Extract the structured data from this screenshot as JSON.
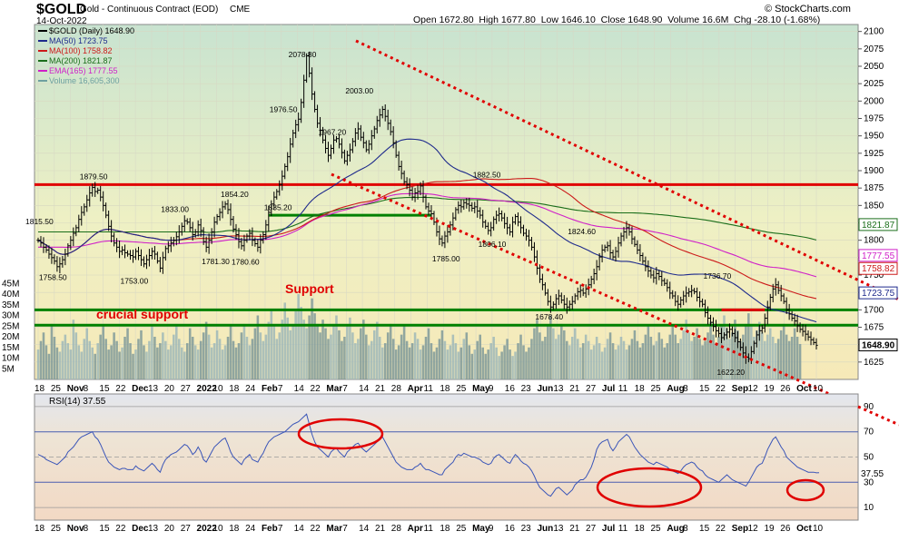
{
  "header": {
    "symbol": "$GOLD",
    "name": "Gold - Continuous Contract (EOD)",
    "exchange": "CME",
    "date": "14-Oct-2022",
    "credit": "© StockCharts.com",
    "ohlc": "Open 1672.80  High 1677.80  Low 1646.10  Close 1648.90  Volume 16.6M  Chg -28.10 (-1.68%)"
  },
  "legend": [
    {
      "label": "$GOLD (Daily) 1648.90",
      "color": "#000000"
    },
    {
      "label": "MA(50) 1723.75",
      "color": "#1e2a8c"
    },
    {
      "label": "MA(100) 1758.82",
      "color": "#cc1a1a"
    },
    {
      "label": "MA(200) 1821.87",
      "color": "#1a6e1a"
    },
    {
      "label": "EMA(165) 1777.55",
      "color": "#d020c8"
    },
    {
      "label": "Volume 16,605,300",
      "color": "#6ea0a0"
    }
  ],
  "rsi_label": "RSI(14) 37.55",
  "annotations": {
    "support": "Support",
    "crucial_support": "crucial support"
  },
  "colors": {
    "price_bg": "#f3eec2",
    "price_bg_top": "#cfe5cf",
    "rsi_bg": "#f0e2cc",
    "red_line": "#e00000",
    "green_line": "#008000",
    "trend": "#e00000",
    "volume": "#8fa8a8"
  },
  "chart_data": {
    "type": "line",
    "price_axis": {
      "ticks": [
        1625,
        1650,
        1675,
        1700,
        1725,
        1750,
        1775,
        1800,
        1825,
        1850,
        1875,
        1900,
        1925,
        1950,
        1975,
        2000,
        2025,
        2050,
        2075,
        2100
      ]
    },
    "volume_axis": {
      "ticks": [
        "5M",
        "10M",
        "15M",
        "20M",
        "25M",
        "30M",
        "35M",
        "40M",
        "45M"
      ]
    },
    "rsi_axis": {
      "ticks": [
        10,
        30,
        50,
        70,
        90
      ],
      "ylim": [
        0,
        100
      ]
    },
    "x_tick_labels": [
      "18",
      "25",
      "Nov",
      "8",
      "15",
      "22",
      "Dec",
      "13",
      "20",
      "27",
      "2022",
      "10",
      "18",
      "24",
      "Feb",
      "7",
      "14",
      "22",
      "Mar",
      "7",
      "14",
      "21",
      "28",
      "Apr",
      "11",
      "18",
      "25",
      "May",
      "9",
      "16",
      "23",
      "Jun",
      "13",
      "21",
      "27",
      "Jul",
      "11",
      "18",
      "25",
      "Aug",
      "8",
      "15",
      "22",
      "Sep",
      "12",
      "19",
      "26",
      "Oct",
      "10"
    ],
    "price_labels": [
      {
        "text": "1815.50",
        "value": 1815.5
      },
      {
        "text": "1758.50",
        "value": 1758.5
      },
      {
        "text": "1879.50",
        "value": 1879.5
      },
      {
        "text": "1753.00",
        "value": 1753
      },
      {
        "text": "1833.00",
        "value": 1833
      },
      {
        "text": "1781.30",
        "value": 1781.3
      },
      {
        "text": "1854.20",
        "value": 1854.2
      },
      {
        "text": "1780.60",
        "value": 1780.6
      },
      {
        "text": "1976.50",
        "value": 1976.5
      },
      {
        "text": "2078.80",
        "value": 2078.8
      },
      {
        "text": "1835.20",
        "value": 1835.2
      },
      {
        "text": "1967.20",
        "value": 1967.2
      },
      {
        "text": "2003.00",
        "value": 2003
      },
      {
        "text": "1785.00",
        "value": 1785
      },
      {
        "text": "1882.50",
        "value": 1882.5
      },
      {
        "text": "1806.10",
        "value": 1806.1
      },
      {
        "text": "1678.40",
        "value": 1678.4
      },
      {
        "text": "1824.60",
        "value": 1824.6
      },
      {
        "text": "1736.70",
        "value": 1736.7
      },
      {
        "text": "1622.20",
        "value": 1622.2
      }
    ],
    "right_value_labels": [
      {
        "text": "1821.87",
        "value": 1821.87,
        "color": "#1a6e1a"
      },
      {
        "text": "1777.55",
        "value": 1777.55,
        "color": "#d020c8"
      },
      {
        "text": "1758.82",
        "value": 1758.82,
        "color": "#cc1a1a"
      },
      {
        "text": "1723.75",
        "value": 1723.75,
        "color": "#1e2a8c"
      },
      {
        "text": "1648.90",
        "value": 1648.9,
        "color": "#000000"
      }
    ],
    "rsi_value_label": "37.55",
    "horizontal_levels": [
      {
        "value": 1880,
        "color": "red"
      },
      {
        "value": 1836,
        "color": "green",
        "from_index": 85,
        "to_index": 145
      },
      {
        "value": 1700,
        "color": "green"
      },
      {
        "value": 1678,
        "color": "green"
      },
      {
        "value": 1700,
        "color": "red",
        "from_index": 252,
        "to_index": 268
      }
    ],
    "price_close": [
      1800,
      1796,
      1790,
      1786,
      1780,
      1775,
      1770,
      1762,
      1766,
      1772,
      1780,
      1792,
      1800,
      1810,
      1818,
      1830,
      1840,
      1848,
      1858,
      1868,
      1876,
      1870,
      1872,
      1862,
      1850,
      1836,
      1820,
      1806,
      1796,
      1790,
      1784,
      1786,
      1782,
      1780,
      1778,
      1776,
      1784,
      1778,
      1772,
      1766,
      1772,
      1778,
      1784,
      1780,
      1770,
      1760,
      1775,
      1788,
      1792,
      1796,
      1800,
      1805,
      1812,
      1820,
      1828,
      1826,
      1818,
      1808,
      1812,
      1822,
      1814,
      1798,
      1790,
      1800,
      1812,
      1826,
      1834,
      1840,
      1848,
      1852,
      1844,
      1830,
      1816,
      1808,
      1798,
      1792,
      1800,
      1806,
      1810,
      1800,
      1795,
      1790,
      1800,
      1808,
      1822,
      1840,
      1852,
      1862,
      1870,
      1880,
      1892,
      1906,
      1920,
      1938,
      1954,
      1966,
      1974,
      1998,
      2030,
      2065,
      2040,
      2010,
      1988,
      1968,
      1958,
      1944,
      1932,
      1922,
      1932,
      1944,
      1946,
      1938,
      1926,
      1914,
      1922,
      1930,
      1942,
      1954,
      1960,
      1948,
      1940,
      1930,
      1938,
      1950,
      1960,
      1972,
      1980,
      1988,
      1978,
      1968,
      1956,
      1940,
      1922,
      1906,
      1896,
      1884,
      1880,
      1872,
      1862,
      1868,
      1870,
      1878,
      1862,
      1848,
      1842,
      1838,
      1826,
      1812,
      1802,
      1796,
      1806,
      1812,
      1822,
      1832,
      1844,
      1850,
      1848,
      1854,
      1852,
      1850,
      1846,
      1848,
      1842,
      1836,
      1826,
      1820,
      1814,
      1818,
      1830,
      1836,
      1838,
      1832,
      1824,
      1818,
      1812,
      1826,
      1834,
      1826,
      1818,
      1810,
      1806,
      1800,
      1790,
      1776,
      1760,
      1744,
      1736,
      1724,
      1712,
      1704,
      1708,
      1716,
      1720,
      1714,
      1708,
      1704,
      1708,
      1712,
      1720,
      1726,
      1728,
      1724,
      1730,
      1736,
      1744,
      1752,
      1762,
      1776,
      1786,
      1790,
      1792,
      1782,
      1776,
      1784,
      1796,
      1806,
      1812,
      1818,
      1812,
      1802,
      1794,
      1786,
      1778,
      1770,
      1762,
      1756,
      1750,
      1746,
      1752,
      1748,
      1742,
      1738,
      1732,
      1724,
      1720,
      1712,
      1708,
      1714,
      1720,
      1724,
      1726,
      1728,
      1726,
      1718,
      1712,
      1708,
      1696,
      1688,
      1682,
      1676,
      1670,
      1666,
      1660,
      1664,
      1668,
      1672,
      1666,
      1660,
      1654,
      1646,
      1638,
      1632,
      1630,
      1640,
      1652,
      1664,
      1670,
      1674,
      1688,
      1704,
      1718,
      1730,
      1736,
      1728,
      1720,
      1712,
      1700,
      1694,
      1688,
      1684,
      1677,
      1672,
      1669,
      1665,
      1661,
      1657,
      1653,
      1649
    ],
    "rsi": [
      52,
      51,
      50,
      48,
      47,
      46,
      45,
      44,
      46,
      48,
      50,
      54,
      56,
      58,
      61,
      64,
      66,
      67,
      68,
      69,
      70,
      66,
      64,
      60,
      55,
      50,
      46,
      44,
      42,
      41,
      40,
      41,
      41,
      40,
      40,
      40,
      43,
      41,
      40,
      39,
      41,
      43,
      45,
      43,
      40,
      38,
      44,
      48,
      50,
      52,
      53,
      54,
      56,
      58,
      60,
      59,
      56,
      52,
      54,
      58,
      54,
      48,
      46,
      50,
      54,
      58,
      60,
      62,
      64,
      65,
      60,
      54,
      50,
      48,
      46,
      44,
      48,
      50,
      52,
      48,
      47,
      46,
      50,
      53,
      58,
      62,
      64,
      66,
      67,
      68,
      69,
      70,
      72,
      74,
      76,
      77,
      78,
      80,
      82,
      84,
      76,
      68,
      62,
      58,
      56,
      54,
      52,
      50,
      54,
      56,
      57,
      54,
      52,
      50,
      54,
      56,
      58,
      60,
      61,
      58,
      56,
      54,
      56,
      58,
      60,
      62,
      64,
      66,
      62,
      58,
      54,
      50,
      46,
      44,
      42,
      41,
      40,
      40,
      40,
      42,
      43,
      45,
      42,
      40,
      40,
      39,
      38,
      37,
      36,
      36,
      40,
      42,
      44,
      46,
      50,
      52,
      51,
      53,
      52,
      51,
      50,
      50,
      49,
      48,
      46,
      45,
      44,
      45,
      49,
      51,
      52,
      50,
      48,
      46,
      45,
      49,
      52,
      50,
      47,
      45,
      44,
      42,
      39,
      35,
      30,
      26,
      24,
      22,
      20,
      19,
      22,
      25,
      26,
      24,
      22,
      20,
      22,
      24,
      28,
      30,
      32,
      32,
      34,
      38,
      42,
      48,
      56,
      60,
      62,
      63,
      64,
      58,
      55,
      58,
      62,
      64,
      66,
      68,
      66,
      62,
      58,
      55,
      52,
      50,
      48,
      46,
      45,
      44,
      46,
      45,
      44,
      43,
      42,
      40,
      39,
      38,
      37,
      39,
      42,
      44,
      45,
      46,
      45,
      42,
      40,
      39,
      36,
      34,
      33,
      32,
      31,
      30,
      32,
      34,
      36,
      34,
      32,
      31,
      30,
      29,
      28,
      27,
      30,
      34,
      38,
      42,
      44,
      45,
      50,
      56,
      60,
      64,
      66,
      62,
      58,
      55,
      50,
      48,
      46,
      44,
      42,
      41,
      40,
      39,
      38,
      38,
      38,
      37.5,
      37.55
    ],
    "volume_m": [
      14,
      18,
      22,
      16,
      12,
      26,
      20,
      15,
      13,
      18,
      21,
      17,
      14,
      28,
      22,
      16,
      13,
      19,
      24,
      18,
      15,
      12,
      17,
      21,
      25,
      19,
      14,
      16,
      22,
      18,
      13,
      15,
      20,
      24,
      17,
      12,
      14,
      19,
      23,
      16,
      13,
      18,
      25,
      20,
      15,
      17,
      22,
      18,
      14,
      16,
      21,
      26,
      19,
      15,
      13,
      17,
      24,
      20,
      16,
      14,
      18,
      22,
      27,
      21,
      15,
      17,
      23,
      19,
      14,
      16,
      20,
      25,
      18,
      15,
      17,
      22,
      26,
      20,
      16,
      19,
      24,
      30,
      22,
      18,
      21,
      27,
      33,
      25,
      19,
      22,
      28,
      36,
      29,
      23,
      26,
      32,
      40,
      34,
      28,
      24,
      30,
      38,
      31,
      26,
      22,
      28,
      24,
      19,
      21,
      26,
      30,
      23,
      18,
      20,
      25,
      29,
      22,
      17,
      19,
      24,
      28,
      21,
      16,
      18,
      23,
      27,
      20,
      15,
      17,
      22,
      26,
      19,
      14,
      16,
      21,
      25,
      18,
      15,
      17,
      22,
      19,
      14,
      16,
      20,
      24,
      17,
      13,
      15,
      19,
      23,
      18,
      14,
      16,
      21,
      17,
      13,
      15,
      19,
      22,
      16,
      12,
      14,
      18,
      21,
      15,
      12,
      14,
      17,
      20,
      15,
      11,
      13,
      16,
      19,
      14,
      11,
      13,
      17,
      21,
      16,
      13,
      15,
      19,
      24,
      28,
      22,
      18,
      20,
      25,
      30,
      24,
      19,
      21,
      26,
      23,
      18,
      16,
      20,
      24,
      19,
      15,
      17,
      21,
      18,
      14,
      16,
      20,
      17,
      13,
      15,
      19,
      22,
      17,
      14,
      16,
      20,
      18,
      14,
      16,
      19,
      23,
      18,
      15,
      17,
      21,
      25,
      20,
      16,
      18,
      22,
      19,
      15,
      17,
      21,
      26,
      21,
      17,
      19,
      23,
      28,
      22,
      18,
      20,
      24,
      19,
      16,
      18,
      22,
      27,
      21,
      17,
      20,
      25,
      30,
      24,
      19,
      22,
      28,
      23,
      18,
      21,
      26,
      31,
      25,
      20,
      23,
      27,
      22,
      18,
      21,
      24,
      20,
      17,
      19,
      23,
      26,
      21,
      18,
      20,
      24,
      20,
      16.6
    ]
  }
}
